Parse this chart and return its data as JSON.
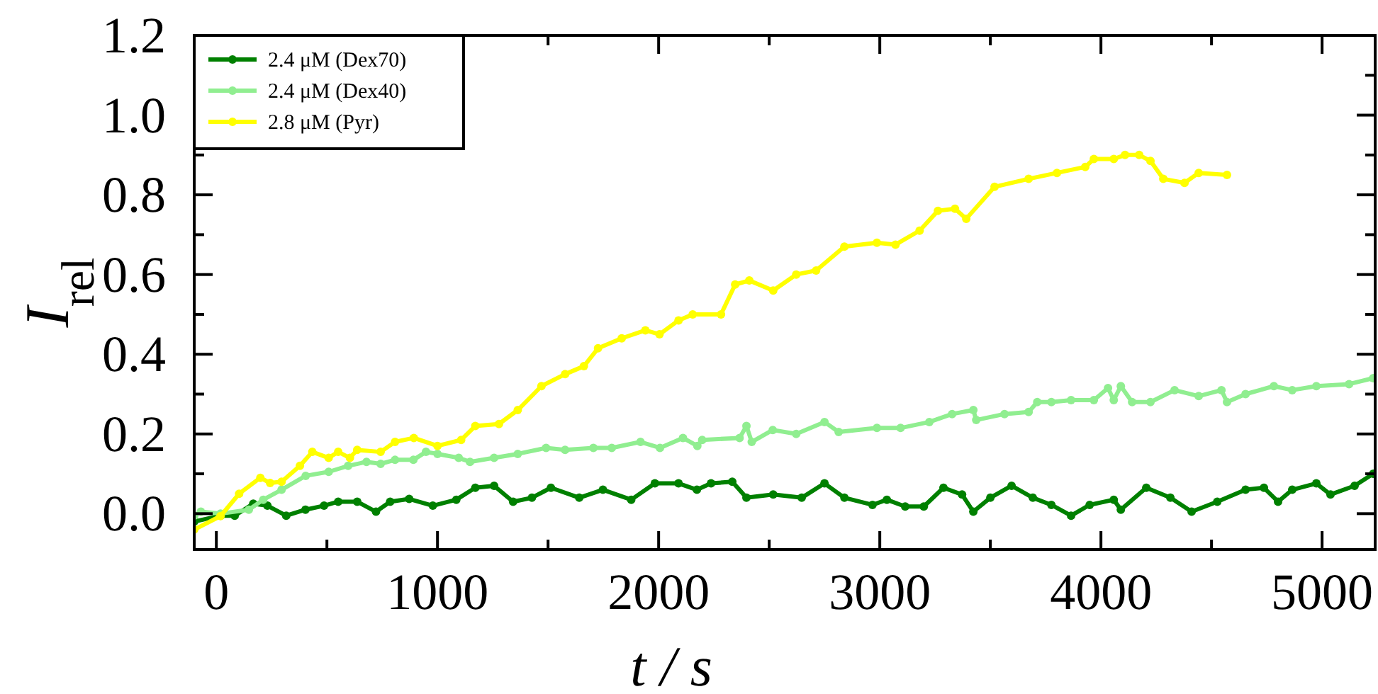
{
  "chart_data": {
    "type": "line",
    "xlabel": "t / s",
    "ylabel": "I$_{rel}$",
    "xlim": [
      -100,
      5240
    ],
    "ylim": [
      -0.09,
      1.2
    ],
    "xticks": [
      0,
      {
        "value": 500,
        "label": null
      },
      1000,
      {
        "value": 1500,
        "label": null
      },
      2000,
      {
        "value": 2500,
        "label": null
      },
      3000,
      {
        "value": 3500,
        "label": null
      },
      4000,
      {
        "value": 4500,
        "label": null
      },
      5000
    ],
    "yticks": [
      {
        "value": 0,
        "label": "0.0"
      },
      {
        "value": 0.1,
        "label": null
      },
      0.2,
      {
        "value": 0.3,
        "label": null
      },
      0.4,
      {
        "value": 0.5,
        "label": null
      },
      0.6,
      {
        "value": 0.7,
        "label": null
      },
      0.8,
      {
        "value": 0.9,
        "label": null
      },
      {
        "value": 1,
        "label": "1.0"
      },
      {
        "value": 1.1,
        "label": null
      },
      1.2
    ],
    "legend": "top left",
    "marker": "circle",
    "line_style": "solid",
    "grid": false,
    "series": [
      {
        "name": "2.4 μM (Dex70)",
        "color": "#008000",
        "x": [
          -100,
          19,
          83,
          167,
          231,
          316,
          403,
          487,
          551,
          637,
          722,
          786,
          872,
          979,
          1085,
          1171,
          1256,
          1342,
          1427,
          1513,
          1641,
          1748,
          1876,
          1983,
          2090,
          2173,
          2237,
          2333,
          2397,
          2518,
          2647,
          2750,
          2840,
          2967,
          3032,
          3115,
          3199,
          3288,
          3372,
          3423,
          3500,
          3596,
          3692,
          3776,
          3865,
          3949,
          4058,
          4090,
          4205,
          4314,
          4410,
          4526,
          4654,
          4737,
          4801,
          4865,
          4974,
          5038,
          5147,
          5231
        ],
        "values": [
          -0.02,
          -0.005,
          -0.005,
          0.025,
          0.02,
          -0.005,
          0.01,
          0.02,
          0.03,
          0.03,
          0.005,
          0.03,
          0.037,
          0.02,
          0.035,
          0.065,
          0.07,
          0.03,
          0.04,
          0.065,
          0.04,
          0.06,
          0.035,
          0.076,
          0.076,
          0.06,
          0.076,
          0.08,
          0.04,
          0.048,
          0.04,
          0.076,
          0.04,
          0.022,
          0.035,
          0.018,
          0.018,
          0.065,
          0.048,
          0.005,
          0.04,
          0.07,
          0.04,
          0.022,
          -0.005,
          0.022,
          0.035,
          0.01,
          0.065,
          0.04,
          0.005,
          0.03,
          0.06,
          0.065,
          0.03,
          0.06,
          0.076,
          0.048,
          0.07,
          0.1
        ]
      },
      {
        "name": "2.4 μM (Dex40)",
        "color": "#90ee90",
        "x": [
          -100,
          -70,
          19,
          147,
          212,
          295,
          404,
          508,
          596,
          679,
          743,
          808,
          891,
          948,
          1000,
          1096,
          1147,
          1256,
          1363,
          1491,
          1577,
          1705,
          1788,
          1918,
          2006,
          2110,
          2175,
          2197,
          2366,
          2397,
          2421,
          2516,
          2622,
          2750,
          2814,
          2987,
          3094,
          3224,
          3327,
          3423,
          3436,
          3564,
          3673,
          3712,
          3776,
          3865,
          3968,
          4032,
          4058,
          4090,
          4141,
          4224,
          4333,
          4442,
          4545,
          4570,
          4654,
          4782,
          4865,
          4974,
          5122,
          5231
        ],
        "values": [
          -0.005,
          0.005,
          0,
          0.01,
          0.035,
          0.06,
          0.095,
          0.105,
          0.12,
          0.13,
          0.125,
          0.135,
          0.135,
          0.155,
          0.15,
          0.14,
          0.13,
          0.14,
          0.15,
          0.165,
          0.16,
          0.165,
          0.165,
          0.18,
          0.165,
          0.19,
          0.17,
          0.185,
          0.19,
          0.22,
          0.18,
          0.21,
          0.2,
          0.23,
          0.205,
          0.215,
          0.215,
          0.23,
          0.25,
          0.26,
          0.235,
          0.25,
          0.255,
          0.28,
          0.28,
          0.285,
          0.285,
          0.315,
          0.285,
          0.32,
          0.28,
          0.28,
          0.31,
          0.295,
          0.31,
          0.28,
          0.3,
          0.32,
          0.31,
          0.32,
          0.325,
          0.34
        ]
      },
      {
        "name": "2.8 μM (Pyr)",
        "color": "#ffff00",
        "x": [
          -100,
          19,
          103,
          199,
          243,
          295,
          378,
          434,
          508,
          551,
          604,
          637,
          743,
          808,
          893,
          1000,
          1107,
          1171,
          1278,
          1363,
          1470,
          1577,
          1662,
          1726,
          1833,
          1940,
          2004,
          2090,
          2154,
          2282,
          2346,
          2410,
          2518,
          2622,
          2712,
          2840,
          2987,
          3071,
          3180,
          3263,
          3340,
          3391,
          3519,
          3673,
          3801,
          3929,
          3968,
          4058,
          4109,
          4173,
          4224,
          4282,
          4378,
          4442,
          4570
        ],
        "values": [
          -0.04,
          -0.006,
          0.05,
          0.09,
          0.077,
          0.08,
          0.12,
          0.155,
          0.14,
          0.155,
          0.14,
          0.16,
          0.155,
          0.18,
          0.19,
          0.17,
          0.185,
          0.22,
          0.225,
          0.26,
          0.32,
          0.35,
          0.37,
          0.415,
          0.44,
          0.46,
          0.45,
          0.485,
          0.5,
          0.5,
          0.575,
          0.585,
          0.56,
          0.6,
          0.61,
          0.67,
          0.68,
          0.675,
          0.71,
          0.76,
          0.765,
          0.74,
          0.82,
          0.84,
          0.855,
          0.87,
          0.89,
          0.89,
          0.9,
          0.9,
          0.885,
          0.84,
          0.83,
          0.855,
          0.85
        ]
      }
    ]
  }
}
